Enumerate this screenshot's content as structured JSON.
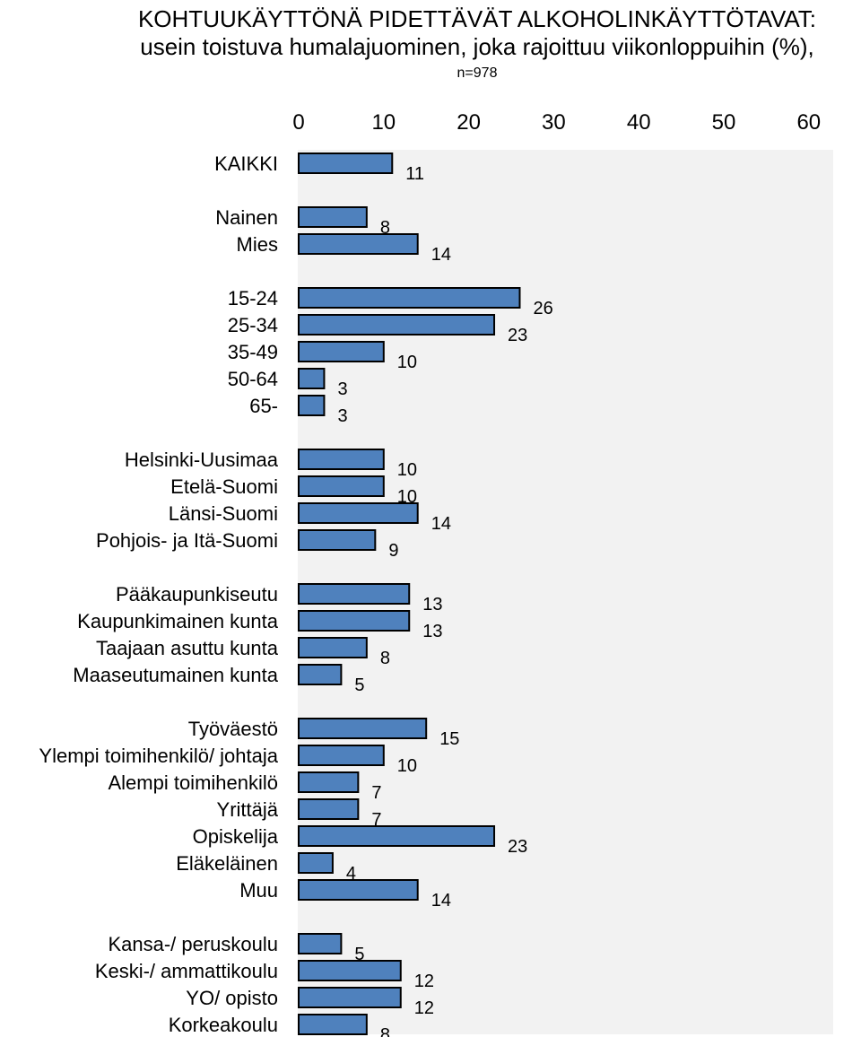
{
  "chart_data": {
    "type": "bar",
    "orientation": "horizontal",
    "title": "KOHTUUKÄYTTÖNÄ PIDETTÄVÄT ALKOHOLINKÄYTTÖTAVAT:",
    "subtitle": "usein toistuva humalajuominen, joka rajoittuu viikonloppuihin (%),",
    "note": "n=978",
    "xlim": [
      0,
      60
    ],
    "x_ticks": [
      "0",
      "10",
      "20",
      "30",
      "40",
      "50",
      "60"
    ],
    "x_axis_position": "top",
    "grid": false,
    "bar_color": "#4f81bd",
    "bar_border_color": "#000000",
    "plot_background": "#f2f2f2",
    "groups": [
      {
        "categories": [
          "KAIKKI"
        ],
        "values": [
          11
        ]
      },
      {
        "categories": [
          "Nainen",
          "Mies"
        ],
        "values": [
          8,
          14
        ]
      },
      {
        "categories": [
          "15-24",
          "25-34",
          "35-49",
          "50-64",
          "65-"
        ],
        "values": [
          26,
          23,
          10,
          3,
          3
        ]
      },
      {
        "categories": [
          "Helsinki-Uusimaa",
          "Etelä-Suomi",
          "Länsi-Suomi",
          "Pohjois- ja Itä-Suomi"
        ],
        "values": [
          10,
          10,
          14,
          9
        ]
      },
      {
        "categories": [
          "Pääkaupunkiseutu",
          "Kaupunkimainen kunta",
          "Taajaan asuttu kunta",
          "Maaseutumainen kunta"
        ],
        "values": [
          13,
          13,
          8,
          5
        ]
      },
      {
        "categories": [
          "Työväestö",
          "Ylempi toimihenkilö/ johtaja",
          "Alempi toimihenkilö",
          "Yrittäjä",
          "Opiskelija",
          "Eläkeläinen",
          "Muu"
        ],
        "values": [
          15,
          10,
          7,
          7,
          23,
          4,
          14
        ]
      },
      {
        "categories": [
          "Kansa-/ peruskoulu",
          "Keski-/ ammattikoulu",
          "YO/ opisto",
          "Korkeakoulu"
        ],
        "values": [
          5,
          12,
          12,
          8
        ]
      }
    ]
  }
}
